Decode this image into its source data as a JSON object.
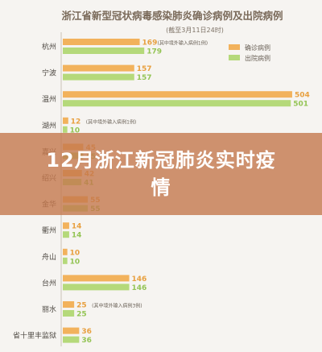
{
  "overlay": {
    "title": "12月浙江新冠肺炎实时疫情"
  },
  "colors": {
    "confirmed": "#f2b25c",
    "discharged": "#b5d97a",
    "background": "#f6f4f1",
    "title": "#7a6a5a",
    "banner": "#c4784e"
  },
  "chart_data": {
    "type": "bar",
    "orientation": "horizontal",
    "title": "浙江省新型冠状病毒感染肺炎确诊病例及出院病例",
    "subtitle": "(截至3月11日24时)",
    "legend": {
      "placement": "top-right",
      "entries": [
        "确诊病例",
        "出院病例"
      ]
    },
    "categories": [
      "杭州",
      "宁波",
      "温州",
      "湖州",
      "嘉兴",
      "绍兴",
      "金华",
      "衢州",
      "舟山",
      "台州",
      "丽水",
      "省十里丰监狱"
    ],
    "series": [
      {
        "name": "确诊病例",
        "values": [
          169,
          157,
          504,
          12,
          45,
          42,
          55,
          14,
          10,
          146,
          25,
          36
        ]
      },
      {
        "name": "出院病例",
        "values": [
          179,
          157,
          501,
          10,
          45,
          41,
          55,
          14,
          10,
          146,
          25,
          36
        ]
      }
    ],
    "annotations": [
      {
        "category": "杭州",
        "text": "(其中境外输入病例1例)"
      },
      {
        "category": "湖州",
        "text": "(其中境外输入病例1例)"
      },
      {
        "category": "丽水",
        "text": "(其中境外输入病例3例)"
      }
    ],
    "xlim": [
      0,
      520
    ],
    "grid": false
  }
}
